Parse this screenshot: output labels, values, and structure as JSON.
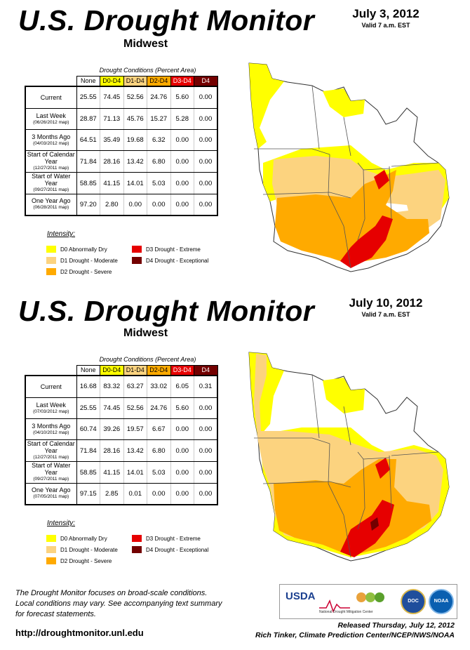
{
  "panels": [
    {
      "title": "U.S. Drought Monitor",
      "region": "Midwest",
      "date": "July 3, 2012",
      "valid": "Valid 7 a.m. EST",
      "caption": "Drought Conditions (Percent Area)",
      "headers": [
        "None",
        "D0-D4",
        "D1-D4",
        "D2-D4",
        "D3-D4",
        "D4"
      ],
      "rows": [
        {
          "label": "Current",
          "sub": "",
          "values": [
            "25.55",
            "74.45",
            "52.56",
            "24.76",
            "5.60",
            "0.00"
          ]
        },
        {
          "label": "Last Week",
          "sub": "(06/26/2012 map)",
          "values": [
            "28.87",
            "71.13",
            "45.76",
            "15.27",
            "5.28",
            "0.00"
          ]
        },
        {
          "label": "3 Months Ago",
          "sub": "(04/03/2012 map)",
          "values": [
            "64.51",
            "35.49",
            "19.68",
            "6.32",
            "0.00",
            "0.00"
          ]
        },
        {
          "label": "Start of Calendar Year",
          "sub": "(12/27/2011 map)",
          "values": [
            "71.84",
            "28.16",
            "13.42",
            "6.80",
            "0.00",
            "0.00"
          ]
        },
        {
          "label": "Start of Water Year",
          "sub": "(09/27/2011 map)",
          "values": [
            "58.85",
            "41.15",
            "14.01",
            "5.03",
            "0.00",
            "0.00"
          ]
        },
        {
          "label": "One Year Ago",
          "sub": "(06/28/2011 map)",
          "values": [
            "97.20",
            "2.80",
            "0.00",
            "0.00",
            "0.00",
            "0.00"
          ]
        }
      ]
    },
    {
      "title": "U.S. Drought Monitor",
      "region": "Midwest",
      "date": "July 10, 2012",
      "valid": "Valid 7 a.m. EST",
      "caption": "Drought Conditions (Percent Area)",
      "headers": [
        "None",
        "D0-D4",
        "D1-D4",
        "D2-D4",
        "D3-D4",
        "D4"
      ],
      "rows": [
        {
          "label": "Current",
          "sub": "",
          "values": [
            "16.68",
            "83.32",
            "63.27",
            "33.02",
            "6.05",
            "0.31"
          ]
        },
        {
          "label": "Last Week",
          "sub": "(07/03/2012 map)",
          "values": [
            "25.55",
            "74.45",
            "52.56",
            "24.76",
            "5.60",
            "0.00"
          ]
        },
        {
          "label": "3 Months Ago",
          "sub": "(04/10/2012 map)",
          "values": [
            "60.74",
            "39.26",
            "19.57",
            "6.67",
            "0.00",
            "0.00"
          ]
        },
        {
          "label": "Start of Calendar Year",
          "sub": "(12/27/2011 map)",
          "values": [
            "71.84",
            "28.16",
            "13.42",
            "6.80",
            "0.00",
            "0.00"
          ]
        },
        {
          "label": "Start of Water Year",
          "sub": "(09/27/2011 map)",
          "values": [
            "58.85",
            "41.15",
            "14.01",
            "5.03",
            "0.00",
            "0.00"
          ]
        },
        {
          "label": "One Year Ago",
          "sub": "(07/05/2011 map)",
          "values": [
            "97.15",
            "2.85",
            "0.01",
            "0.00",
            "0.00",
            "0.00"
          ]
        }
      ]
    }
  ],
  "header_colors": [
    "#ffffff",
    "#ffff00",
    "#fcd37f",
    "#ffaa00",
    "#e60000",
    "#730000"
  ],
  "intensity": {
    "heading": "Intensity:",
    "items": [
      {
        "label": "D0 Abnormally Dry",
        "color": "#ffff00"
      },
      {
        "label": "D1 Drought - Moderate",
        "color": "#fcd37f"
      },
      {
        "label": "D2 Drought - Severe",
        "color": "#ffaa00"
      },
      {
        "label": "D3 Drought - Extreme",
        "color": "#e60000"
      },
      {
        "label": "D4 Drought - Exceptional",
        "color": "#730000"
      }
    ]
  },
  "footer": {
    "note": [
      "The Drought Monitor focuses on broad-scale conditions.",
      "Local conditions may vary. See accompanying text summary",
      "for forecast statements."
    ],
    "url": "http://droughtmonitor.unl.edu",
    "released": "Released Thursday, July 12, 2012",
    "author": "Rich Tinker, Climate Prediction Center/NCEP/NWS/NOAA",
    "logos": [
      "USDA",
      "National Drought Mitigation Center",
      "DOC",
      "NOAA"
    ]
  }
}
